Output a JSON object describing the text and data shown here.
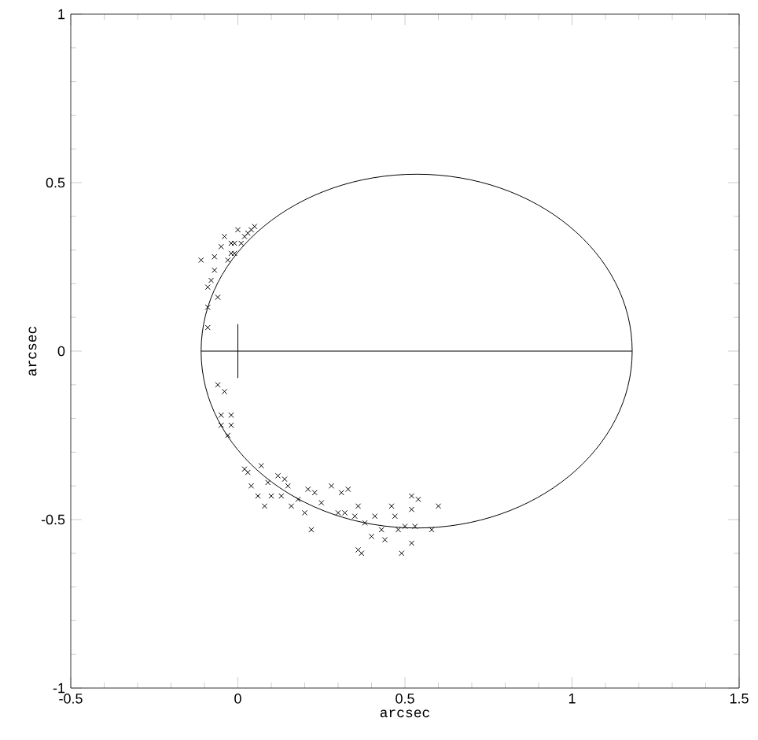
{
  "chart_data": {
    "type": "scatter",
    "xlabel": "arcsec",
    "ylabel": "arcsec",
    "xlim": [
      -0.5,
      1.5
    ],
    "ylim": [
      -1,
      1
    ],
    "xticks": [
      -0.5,
      0,
      0.5,
      1,
      1.5
    ],
    "yticks": [
      -1,
      -0.5,
      0,
      0.5,
      1
    ],
    "series": [
      {
        "type": "line",
        "color": "#000000",
        "marker": "none",
        "x": [
          -0.11,
          1.18
        ],
        "values": [
          0,
          0
        ]
      },
      {
        "color": "#000000",
        "marker": "cross",
        "x": [
          -0.11,
          -0.09,
          -0.07,
          -0.06,
          -0.09,
          -0.09,
          -0.08,
          -0.05,
          -0.04,
          -0.02,
          -0.02,
          -0.03,
          -0.01,
          0.0,
          0.02,
          0.01,
          0.03,
          0.04,
          0.05,
          -0.01,
          -0.07,
          -0.06,
          -0.04,
          -0.05,
          -0.03,
          -0.05,
          -0.02,
          -0.02,
          0.02,
          0.03,
          0.04,
          0.07,
          0.06,
          0.09,
          0.1,
          0.08,
          0.12,
          0.13,
          0.14,
          0.15,
          0.16,
          0.18,
          0.21,
          0.2,
          0.23,
          0.25,
          0.22,
          0.28,
          0.3,
          0.31,
          0.33,
          0.32,
          0.35,
          0.36,
          0.38,
          0.4,
          0.41,
          0.43,
          0.44,
          0.46,
          0.47,
          0.49,
          0.48,
          0.5,
          0.36,
          0.37,
          0.52,
          0.53,
          0.54,
          0.52,
          0.58,
          0.52,
          0.6
        ],
        "values": [
          0.27,
          0.19,
          0.24,
          0.16,
          0.13,
          0.07,
          0.21,
          0.31,
          0.34,
          0.32,
          0.29,
          0.27,
          0.32,
          0.36,
          0.34,
          0.32,
          0.35,
          0.36,
          0.37,
          0.29,
          0.28,
          -0.1,
          -0.12,
          -0.22,
          -0.25,
          -0.19,
          -0.19,
          -0.22,
          -0.35,
          -0.36,
          -0.4,
          -0.34,
          -0.43,
          -0.39,
          -0.43,
          -0.46,
          -0.37,
          -0.43,
          -0.38,
          -0.4,
          -0.46,
          -0.44,
          -0.41,
          -0.48,
          -0.42,
          -0.45,
          -0.53,
          -0.4,
          -0.48,
          -0.42,
          -0.41,
          -0.48,
          -0.49,
          -0.46,
          -0.51,
          -0.55,
          -0.49,
          -0.53,
          -0.56,
          -0.46,
          -0.49,
          -0.6,
          -0.53,
          -0.52,
          -0.59,
          -0.6,
          -0.57,
          -0.52,
          -0.44,
          -0.47,
          -0.53,
          -0.43,
          -0.46
        ]
      }
    ]
  }
}
